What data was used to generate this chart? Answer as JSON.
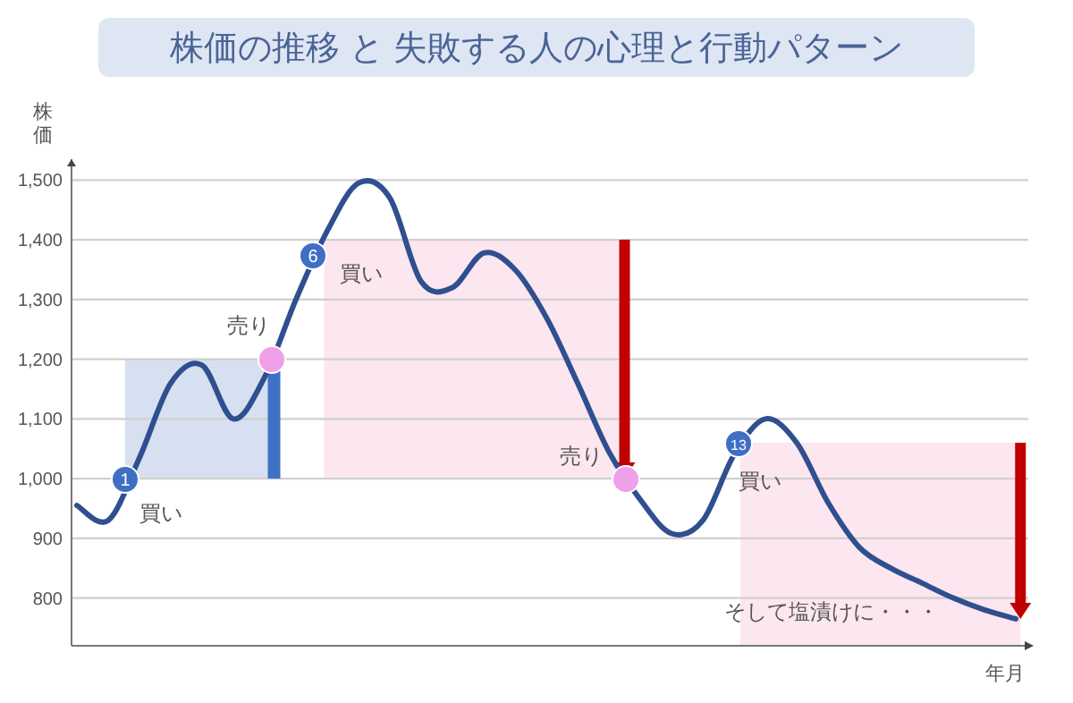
{
  "chart_data": {
    "type": "line",
    "title": "株価の推移 と 失敗する人の心理と行動パターン",
    "xlabel": "年月",
    "ylabel": "株価",
    "categories": [
      null,
      null,
      null,
      null,
      null,
      null,
      null,
      null,
      null,
      null,
      null,
      null,
      null,
      null,
      null,
      null,
      null,
      null,
      null,
      null,
      null,
      null,
      null,
      null,
      null,
      null,
      null,
      null,
      null,
      null,
      null
    ],
    "series": [
      {
        "color": "#2f4f8f",
        "values": [
          955,
          930,
          1035,
          1160,
          1190,
          1100,
          1170,
          1300,
          1415,
          1495,
          1470,
          1330,
          1320,
          1378,
          1350,
          1270,
          1160,
          1045,
          965,
          908,
          930,
          1040,
          1100,
          1060,
          960,
          885,
          850,
          825,
          800,
          780,
          765
        ]
      }
    ],
    "ylim": [
      720,
      1535
    ],
    "yticks": [
      {
        "value": 800,
        "label": "800"
      },
      {
        "value": 900,
        "label": "900"
      },
      {
        "value": 1000,
        "label": "1,000"
      },
      {
        "value": 1100,
        "label": "1,100"
      },
      {
        "value": 1200,
        "label": "1,200"
      },
      {
        "value": 1300,
        "label": "1,300"
      },
      {
        "value": 1400,
        "label": "1,400"
      },
      {
        "value": 1500,
        "label": "1,500"
      }
    ],
    "grid": "y",
    "tick_labels": "y",
    "line_style": "solid",
    "marker": "none",
    "bands": [
      {
        "axis": "y",
        "from": 1000,
        "to": 1200,
        "color": "#d6e0f0"
      },
      {
        "axis": "y",
        "from": 1000,
        "to": 1400,
        "color": "#fce6ef"
      },
      {
        "axis": "y",
        "from": 720,
        "to": 1060,
        "color": "#fce6ef"
      }
    ],
    "annotations": [
      "1",
      "買い",
      "売り",
      "6",
      "買い",
      "売り",
      "13",
      "買い",
      "そして塩漬けに・・・"
    ]
  }
}
